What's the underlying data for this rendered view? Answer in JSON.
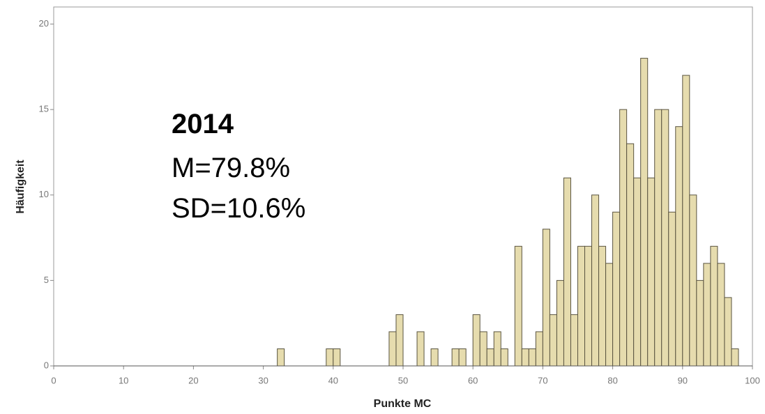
{
  "chart_data": {
    "type": "histogram",
    "x_label": "Punkte MC",
    "y_label": "Häufigkeit",
    "annotations": [
      "2014",
      "M=79.8%",
      "SD=10.6%"
    ],
    "bins": [
      32,
      33,
      34,
      35,
      36,
      37,
      38,
      39,
      40,
      41,
      42,
      43,
      44,
      45,
      46,
      47,
      48,
      49,
      50,
      51,
      52,
      53,
      54,
      55,
      56,
      57,
      58,
      59,
      60,
      61,
      62,
      63,
      64,
      65,
      66,
      67,
      68,
      69,
      70,
      71,
      72,
      73,
      74,
      75,
      76,
      77,
      78,
      79,
      80,
      81,
      82,
      83,
      84,
      85,
      86,
      87,
      88,
      89,
      90,
      91,
      92,
      93,
      94,
      95,
      96,
      97,
      98
    ],
    "values": [
      1,
      0,
      0,
      0,
      0,
      0,
      0,
      1,
      1,
      0,
      0,
      0,
      0,
      0,
      0,
      0,
      2,
      3,
      0,
      0,
      2,
      0,
      1,
      0,
      0,
      1,
      1,
      0,
      3,
      2,
      1,
      2,
      1,
      0,
      7,
      1,
      1,
      2,
      8,
      3,
      5,
      11,
      3,
      7,
      7,
      10,
      7,
      6,
      9,
      15,
      13,
      11,
      18,
      11,
      15,
      15,
      9,
      14,
      17,
      10,
      5,
      6,
      7,
      6,
      4,
      1
    ],
    "color": "#e6dcae",
    "xlim": [
      0,
      100
    ],
    "xticks": [
      0,
      10,
      20,
      30,
      40,
      50,
      60,
      70,
      80,
      90,
      100
    ],
    "ylim": [
      0,
      21
    ],
    "yticks": [
      0,
      5,
      10,
      15,
      20
    ]
  }
}
